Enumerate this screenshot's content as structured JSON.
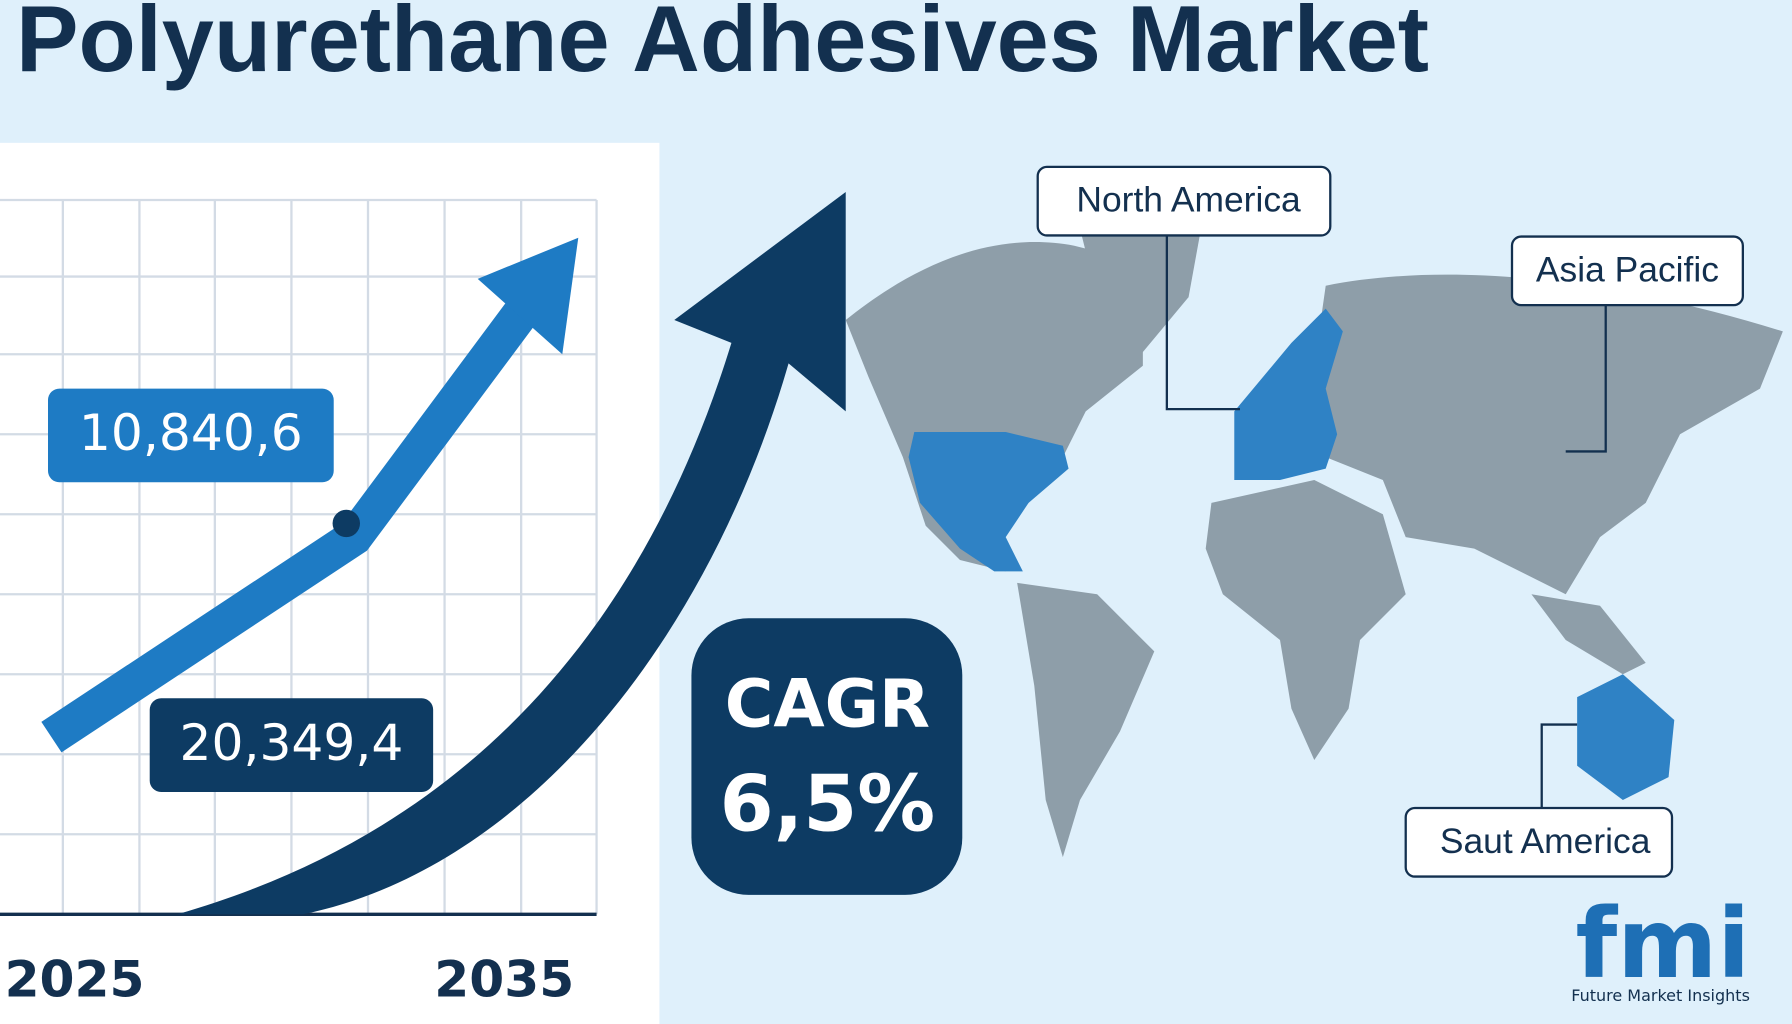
{
  "header": {
    "title": "Polyurethane Adhesives Market"
  },
  "chart": {
    "label_2025_value": "10,840,6",
    "label_2035_value": "20,349,4",
    "start_year": "2025",
    "end_year": "2035"
  },
  "cagr": {
    "label": "CAGR",
    "value": "6,5%"
  },
  "regions": [
    "North America",
    "Asia Pacific",
    "Saut America"
  ],
  "logo": {
    "mark": "fmi",
    "name": "Future Market Insights"
  }
}
